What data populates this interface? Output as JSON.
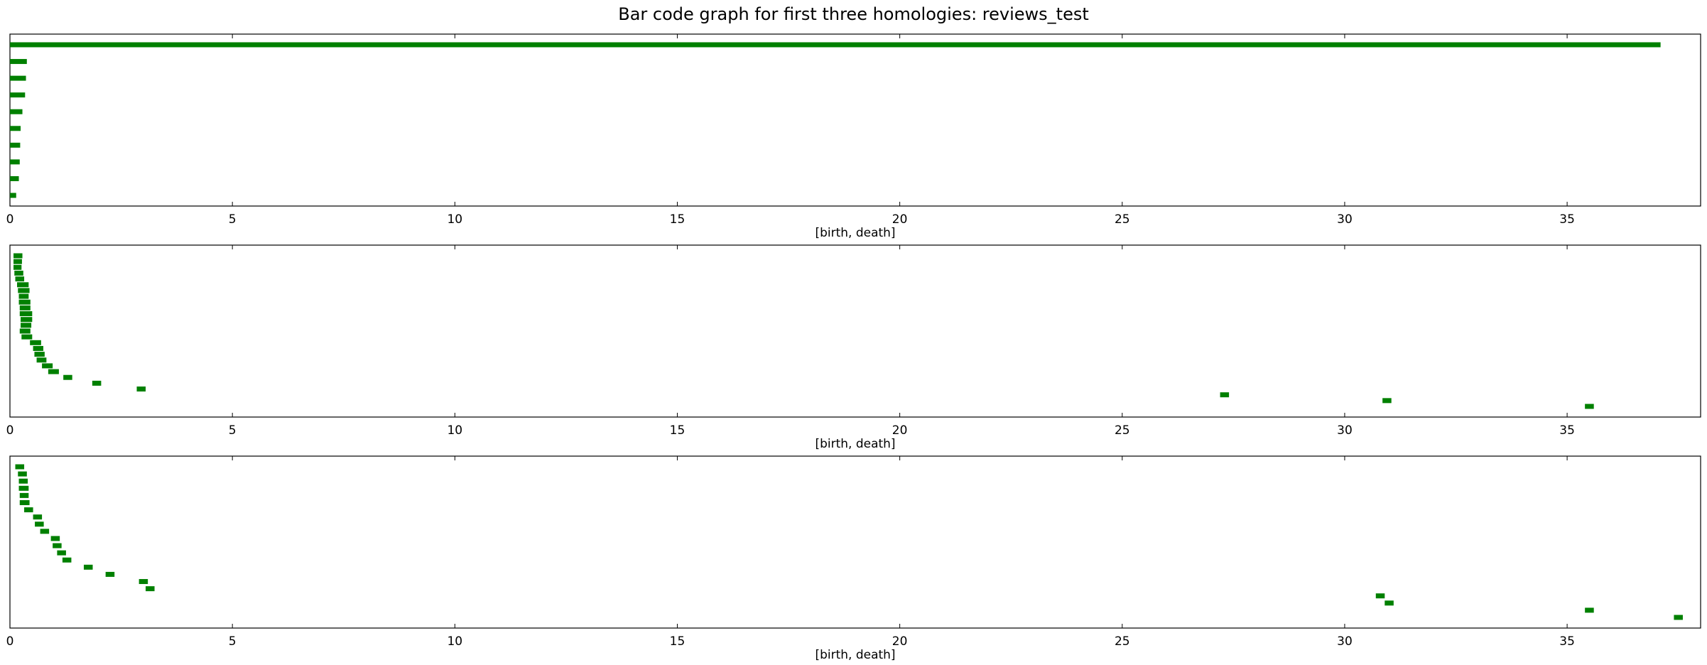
{
  "title": "Bar code graph for first three homologies: reviews_test",
  "bar_color": "#008000",
  "chart_data": [
    {
      "type": "barcode",
      "xlabel": "[birth, death]",
      "xlim": [
        0,
        38
      ],
      "xticks": [
        0,
        5,
        10,
        15,
        20,
        25,
        30,
        35
      ],
      "intervals": [
        [
          0,
          37.1
        ],
        [
          0,
          0.38
        ],
        [
          0,
          0.36
        ],
        [
          0,
          0.34
        ],
        [
          0,
          0.28
        ],
        [
          0,
          0.24
        ],
        [
          0,
          0.23
        ],
        [
          0,
          0.22
        ],
        [
          0,
          0.2
        ],
        [
          0,
          0.14
        ]
      ]
    },
    {
      "type": "barcode",
      "xlabel": "[birth, death]",
      "xlim": [
        0,
        38
      ],
      "xticks": [
        0,
        5,
        10,
        15,
        20,
        25,
        30,
        35
      ],
      "intervals": [
        [
          0.08,
          0.28
        ],
        [
          0.08,
          0.27
        ],
        [
          0.08,
          0.26
        ],
        [
          0.1,
          0.3
        ],
        [
          0.12,
          0.32
        ],
        [
          0.16,
          0.42
        ],
        [
          0.18,
          0.44
        ],
        [
          0.2,
          0.42
        ],
        [
          0.2,
          0.46
        ],
        [
          0.22,
          0.46
        ],
        [
          0.22,
          0.5
        ],
        [
          0.24,
          0.5
        ],
        [
          0.24,
          0.48
        ],
        [
          0.22,
          0.46
        ],
        [
          0.26,
          0.5
        ],
        [
          0.45,
          0.7
        ],
        [
          0.52,
          0.75
        ],
        [
          0.55,
          0.78
        ],
        [
          0.6,
          0.82
        ],
        [
          0.72,
          0.96
        ],
        [
          0.86,
          1.1
        ],
        [
          1.2,
          1.4
        ],
        [
          1.85,
          2.05
        ],
        [
          2.85,
          3.05
        ],
        [
          27.2,
          27.4
        ],
        [
          30.85,
          31.05
        ],
        [
          35.4,
          35.6
        ]
      ]
    },
    {
      "type": "barcode",
      "xlabel": "[birth, death]",
      "xlim": [
        0,
        38
      ],
      "xticks": [
        0,
        5,
        10,
        15,
        20,
        25,
        30,
        35
      ],
      "intervals": [
        [
          0.12,
          0.32
        ],
        [
          0.18,
          0.38
        ],
        [
          0.2,
          0.4
        ],
        [
          0.2,
          0.42
        ],
        [
          0.22,
          0.42
        ],
        [
          0.22,
          0.44
        ],
        [
          0.32,
          0.52
        ],
        [
          0.52,
          0.72
        ],
        [
          0.56,
          0.76
        ],
        [
          0.68,
          0.88
        ],
        [
          0.92,
          1.12
        ],
        [
          0.96,
          1.16
        ],
        [
          1.06,
          1.26
        ],
        [
          1.18,
          1.38
        ],
        [
          1.66,
          1.86
        ],
        [
          2.15,
          2.35
        ],
        [
          2.9,
          3.1
        ],
        [
          3.05,
          3.25
        ],
        [
          30.7,
          30.9
        ],
        [
          30.9,
          31.1
        ],
        [
          35.4,
          35.6
        ],
        [
          37.4,
          37.6
        ]
      ]
    }
  ]
}
